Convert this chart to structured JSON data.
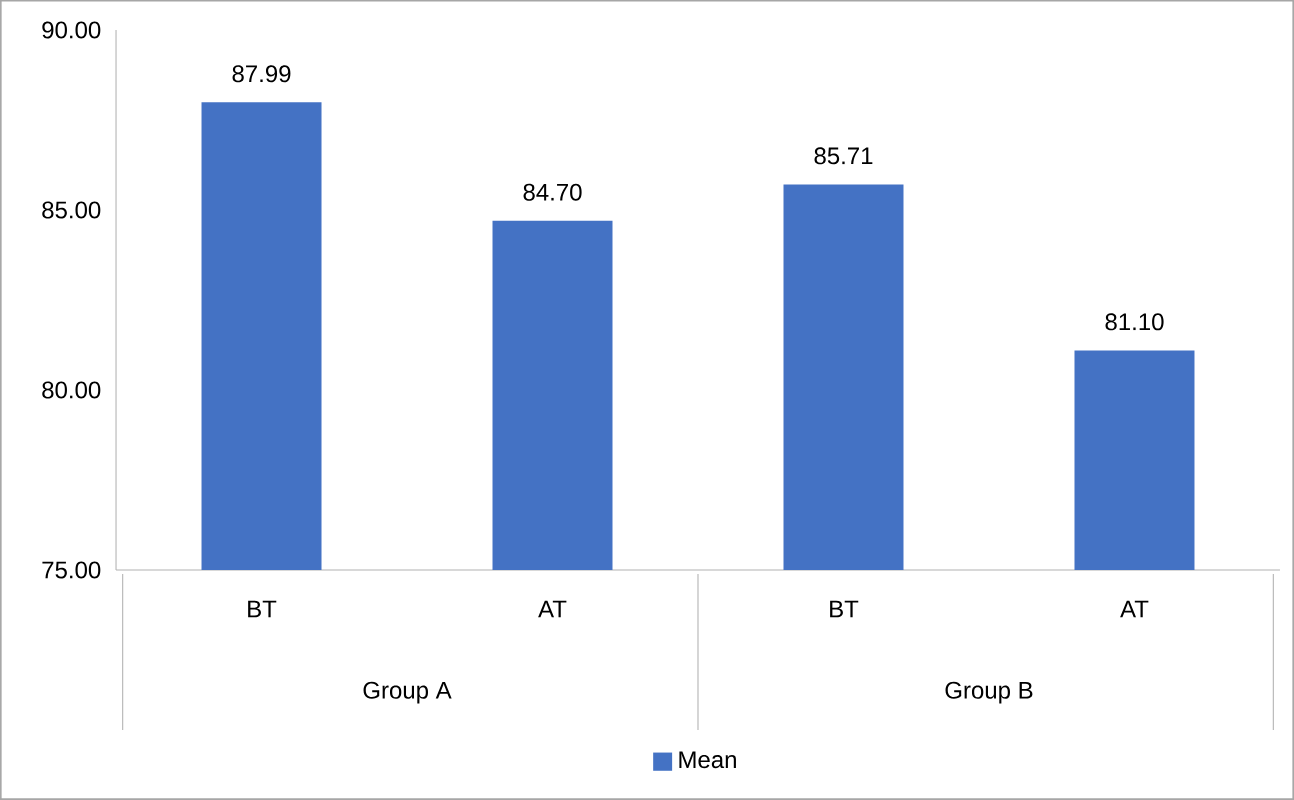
{
  "chart_data": {
    "type": "bar",
    "categories": [
      "BT",
      "AT",
      "BT",
      "AT"
    ],
    "series": [
      {
        "name": "Mean",
        "color": "#4472c4",
        "values": [
          87.99,
          84.7,
          85.71,
          81.1
        ],
        "value_labels": [
          "87.99",
          "84.70",
          "85.71",
          "81.10"
        ]
      }
    ],
    "ylim": [
      75,
      90
    ],
    "yticks": [
      {
        "value": 75,
        "label": "75.00"
      },
      {
        "value": 80,
        "label": "80.00"
      },
      {
        "value": 85,
        "label": "85.00"
      },
      {
        "value": 90,
        "label": "90.00"
      }
    ],
    "annotations": [
      "Group A",
      "Group B"
    ],
    "legend": "bottom"
  }
}
